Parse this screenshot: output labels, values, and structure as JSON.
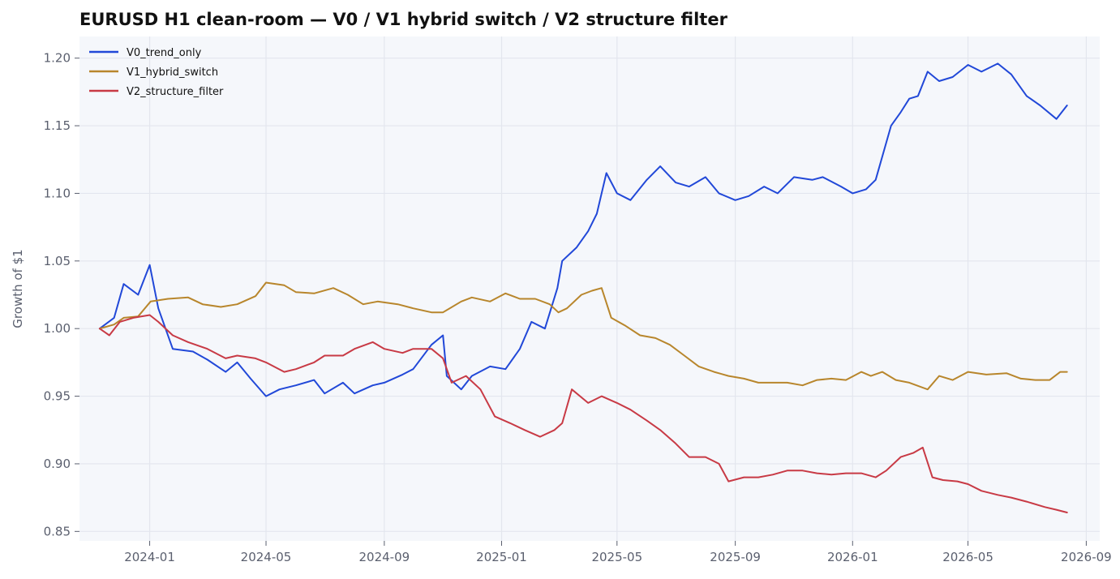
{
  "chart_data": {
    "type": "line",
    "title": "EURUSD H1 clean-room — V0 / V1 hybrid switch / V2 structure filter",
    "xlabel": "",
    "ylabel": "Growth of $1",
    "xlim": [
      "2023-10-20",
      "2026-09-15"
    ],
    "ylim": [
      0.843,
      1.216
    ],
    "x_ticks": [
      "2024-01",
      "2024-05",
      "2024-09",
      "2025-01",
      "2025-05",
      "2025-09",
      "2026-01",
      "2026-05",
      "2026-09"
    ],
    "y_ticks": [
      0.85,
      0.9,
      0.95,
      1.0,
      1.05,
      1.1,
      1.15,
      1.2
    ],
    "y_tick_labels": [
      "0.85",
      "0.90",
      "0.95",
      "1.00",
      "1.05",
      "1.10",
      "1.15",
      "1.20"
    ],
    "grid": true,
    "legend": "top-left",
    "background_color": "#f5f7fb",
    "grid_color": "#e3e6ee",
    "series": [
      {
        "name": "V0_trend_only",
        "color": "#2148d8",
        "x": [
          "2023-11-10",
          "2023-11-25",
          "2023-12-05",
          "2023-12-20",
          "2024-01-01",
          "2024-01-10",
          "2024-01-25",
          "2024-02-15",
          "2024-03-01",
          "2024-03-20",
          "2024-04-01",
          "2024-04-15",
          "2024-05-01",
          "2024-05-15",
          "2024-06-01",
          "2024-06-20",
          "2024-07-01",
          "2024-07-20",
          "2024-08-01",
          "2024-08-20",
          "2024-09-01",
          "2024-09-20",
          "2024-10-01",
          "2024-10-20",
          "2024-11-01",
          "2024-11-05",
          "2024-11-20",
          "2024-12-01",
          "2024-12-20",
          "2025-01-05",
          "2025-01-20",
          "2025-02-01",
          "2025-02-15",
          "2025-02-28",
          "2025-03-05",
          "2025-03-20",
          "2025-04-01",
          "2025-04-10",
          "2025-04-20",
          "2025-05-01",
          "2025-05-15",
          "2025-06-01",
          "2025-06-15",
          "2025-07-01",
          "2025-07-15",
          "2025-08-01",
          "2025-08-15",
          "2025-09-01",
          "2025-09-15",
          "2025-10-01",
          "2025-10-15",
          "2025-11-01",
          "2025-11-20",
          "2025-12-01",
          "2025-12-20",
          "2026-01-01",
          "2026-01-15",
          "2026-01-25",
          "2026-02-10",
          "2026-02-20",
          "2026-03-01",
          "2026-03-10",
          "2026-03-20",
          "2026-04-01",
          "2026-04-15",
          "2026-05-01",
          "2026-05-15",
          "2026-06-01",
          "2026-06-15",
          "2026-07-01",
          "2026-07-15",
          "2026-08-01",
          "2026-08-12"
        ],
        "values": [
          1.0,
          1.008,
          1.033,
          1.025,
          1.047,
          1.015,
          0.985,
          0.983,
          0.977,
          0.968,
          0.975,
          0.963,
          0.95,
          0.955,
          0.958,
          0.962,
          0.952,
          0.96,
          0.952,
          0.958,
          0.96,
          0.966,
          0.97,
          0.988,
          0.995,
          0.965,
          0.955,
          0.965,
          0.972,
          0.97,
          0.985,
          1.005,
          1.0,
          1.03,
          1.05,
          1.06,
          1.072,
          1.085,
          1.115,
          1.1,
          1.095,
          1.11,
          1.12,
          1.108,
          1.105,
          1.112,
          1.1,
          1.095,
          1.098,
          1.105,
          1.1,
          1.112,
          1.11,
          1.112,
          1.105,
          1.1,
          1.103,
          1.11,
          1.15,
          1.16,
          1.17,
          1.172,
          1.19,
          1.183,
          1.186,
          1.195,
          1.19,
          1.196,
          1.188,
          1.172,
          1.165,
          1.155,
          1.165
        ]
      },
      {
        "name": "V1_hybrid_switch",
        "color": "#b8862c",
        "x": [
          "2023-11-10",
          "2023-11-25",
          "2023-12-05",
          "2023-12-20",
          "2024-01-02",
          "2024-01-20",
          "2024-02-10",
          "2024-02-25",
          "2024-03-15",
          "2024-04-01",
          "2024-04-20",
          "2024-05-01",
          "2024-05-20",
          "2024-06-01",
          "2024-06-20",
          "2024-07-10",
          "2024-07-25",
          "2024-08-10",
          "2024-08-25",
          "2024-09-15",
          "2024-10-01",
          "2024-10-20",
          "2024-11-01",
          "2024-11-20",
          "2024-12-01",
          "2024-12-20",
          "2025-01-05",
          "2025-01-20",
          "2025-02-05",
          "2025-02-20",
          "2025-03-01",
          "2025-03-10",
          "2025-03-25",
          "2025-04-05",
          "2025-04-15",
          "2025-04-25",
          "2025-05-10",
          "2025-05-25",
          "2025-06-10",
          "2025-06-25",
          "2025-07-10",
          "2025-07-25",
          "2025-08-10",
          "2025-08-25",
          "2025-09-10",
          "2025-09-25",
          "2025-10-10",
          "2025-10-25",
          "2025-11-10",
          "2025-11-25",
          "2025-12-10",
          "2025-12-25",
          "2026-01-10",
          "2026-01-20",
          "2026-02-01",
          "2026-02-15",
          "2026-03-01",
          "2026-03-20",
          "2026-04-01",
          "2026-04-15",
          "2026-05-01",
          "2026-05-20",
          "2026-06-10",
          "2026-06-25",
          "2026-07-10",
          "2026-07-25",
          "2026-08-05",
          "2026-08-12"
        ],
        "values": [
          1.0,
          1.003,
          1.008,
          1.009,
          1.02,
          1.022,
          1.023,
          1.018,
          1.016,
          1.018,
          1.024,
          1.034,
          1.032,
          1.027,
          1.026,
          1.03,
          1.025,
          1.018,
          1.02,
          1.018,
          1.015,
          1.012,
          1.012,
          1.02,
          1.023,
          1.02,
          1.026,
          1.022,
          1.022,
          1.018,
          1.012,
          1.015,
          1.025,
          1.028,
          1.03,
          1.008,
          1.002,
          0.995,
          0.993,
          0.988,
          0.98,
          0.972,
          0.968,
          0.965,
          0.963,
          0.96,
          0.96,
          0.96,
          0.958,
          0.962,
          0.963,
          0.962,
          0.968,
          0.965,
          0.968,
          0.962,
          0.96,
          0.955,
          0.965,
          0.962,
          0.968,
          0.966,
          0.967,
          0.963,
          0.962,
          0.962,
          0.968,
          0.968
        ]
      },
      {
        "name": "V2_structure_filter",
        "color": "#c83a45",
        "x": [
          "2023-11-10",
          "2023-11-20",
          "2023-12-01",
          "2023-12-15",
          "2024-01-01",
          "2024-01-10",
          "2024-01-25",
          "2024-02-10",
          "2024-03-01",
          "2024-03-20",
          "2024-04-01",
          "2024-04-20",
          "2024-05-01",
          "2024-05-20",
          "2024-06-01",
          "2024-06-20",
          "2024-07-01",
          "2024-07-20",
          "2024-08-01",
          "2024-08-20",
          "2024-09-01",
          "2024-09-20",
          "2024-10-01",
          "2024-10-20",
          "2024-11-01",
          "2024-11-10",
          "2024-11-25",
          "2024-12-10",
          "2024-12-25",
          "2025-01-10",
          "2025-01-25",
          "2025-02-10",
          "2025-02-25",
          "2025-03-05",
          "2025-03-15",
          "2025-04-01",
          "2025-04-15",
          "2025-05-01",
          "2025-05-15",
          "2025-06-01",
          "2025-06-15",
          "2025-07-01",
          "2025-07-15",
          "2025-08-01",
          "2025-08-15",
          "2025-08-25",
          "2025-09-10",
          "2025-09-25",
          "2025-10-10",
          "2025-10-25",
          "2025-11-10",
          "2025-11-25",
          "2025-12-10",
          "2025-12-25",
          "2026-01-10",
          "2026-01-25",
          "2026-02-05",
          "2026-02-20",
          "2026-03-05",
          "2026-03-15",
          "2026-03-25",
          "2026-04-05",
          "2026-04-20",
          "2026-05-01",
          "2026-05-15",
          "2026-06-01",
          "2026-06-15",
          "2026-07-01",
          "2026-07-20",
          "2026-08-01",
          "2026-08-12"
        ],
        "values": [
          1.0,
          0.995,
          1.005,
          1.008,
          1.01,
          1.005,
          0.995,
          0.99,
          0.985,
          0.978,
          0.98,
          0.978,
          0.975,
          0.968,
          0.97,
          0.975,
          0.98,
          0.98,
          0.985,
          0.99,
          0.985,
          0.982,
          0.985,
          0.985,
          0.978,
          0.96,
          0.965,
          0.955,
          0.935,
          0.93,
          0.925,
          0.92,
          0.925,
          0.93,
          0.955,
          0.945,
          0.95,
          0.945,
          0.94,
          0.932,
          0.925,
          0.915,
          0.905,
          0.905,
          0.9,
          0.887,
          0.89,
          0.89,
          0.892,
          0.895,
          0.895,
          0.893,
          0.892,
          0.893,
          0.893,
          0.89,
          0.895,
          0.905,
          0.908,
          0.912,
          0.89,
          0.888,
          0.887,
          0.885,
          0.88,
          0.877,
          0.875,
          0.872,
          0.868,
          0.866,
          0.864
        ]
      }
    ]
  }
}
